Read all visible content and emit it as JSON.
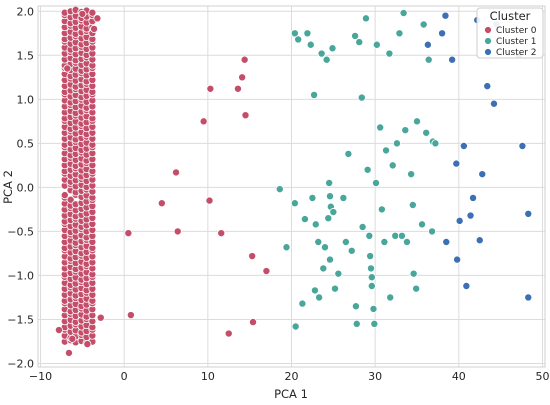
{
  "chart_data": {
    "type": "scatter",
    "xlabel": "PCA 1",
    "ylabel": "PCA 2",
    "xlim": [
      -10.3,
      50.3
    ],
    "ylim": [
      -2.04,
      2.06
    ],
    "xticks": [
      -10,
      0,
      10,
      20,
      30,
      40,
      50
    ],
    "yticks": [
      -2.0,
      -1.5,
      -1.0,
      -0.5,
      0.0,
      0.5,
      1.0,
      1.5,
      2.0
    ],
    "xtick_labels": [
      "−10",
      "0",
      "10",
      "20",
      "30",
      "40",
      "50"
    ],
    "ytick_labels": [
      "−2.0",
      "−1.5",
      "−1.0",
      "−0.5",
      "0.0",
      "0.5",
      "1.0",
      "1.5",
      "2.0"
    ],
    "grid": true,
    "legend": {
      "title": "Cluster",
      "position": "top-right"
    },
    "series": [
      {
        "name": "Cluster 0",
        "color": "#c44e6a",
        "band": {
          "columns": [
            -7.1,
            -6.4,
            -5.8,
            -5.1,
            -4.5,
            -3.8
          ],
          "y_from": -1.72,
          "y_to": 2.0,
          "y_step": 0.06
        },
        "points": [
          [
            -7.8,
            -1.62
          ],
          [
            -6.6,
            -1.88
          ],
          [
            -4.4,
            -1.78
          ],
          [
            -6.8,
            1.35
          ],
          [
            -3.2,
            1.92
          ],
          [
            -5.0,
            1.97
          ],
          [
            -2.8,
            -1.48
          ],
          [
            -6.2,
            -1.72
          ],
          [
            -3.6,
            1.8
          ],
          [
            0.5,
            -0.52
          ],
          [
            0.8,
            -1.45
          ],
          [
            4.5,
            -0.18
          ],
          [
            6.2,
            0.17
          ],
          [
            6.4,
            -0.5
          ],
          [
            9.5,
            0.75
          ],
          [
            10.2,
            -0.15
          ],
          [
            10.3,
            1.12
          ],
          [
            11.6,
            -0.52
          ],
          [
            12.5,
            -1.66
          ],
          [
            13.6,
            1.12
          ],
          [
            14.1,
            1.25
          ],
          [
            14.4,
            1.45
          ],
          [
            14.5,
            0.82
          ],
          [
            15.3,
            -0.78
          ],
          [
            15.4,
            -1.53
          ],
          [
            17.0,
            -0.95
          ]
        ]
      },
      {
        "name": "Cluster 1",
        "color": "#48a69a",
        "points": [
          [
            18.6,
            -0.02
          ],
          [
            19.4,
            -0.68
          ],
          [
            20.4,
            -0.18
          ],
          [
            20.5,
            -1.58
          ],
          [
            20.4,
            1.75
          ],
          [
            20.8,
            1.68
          ],
          [
            21.3,
            -1.32
          ],
          [
            21.6,
            -0.36
          ],
          [
            21.9,
            1.75
          ],
          [
            22.3,
            1.62
          ],
          [
            22.5,
            -0.12
          ],
          [
            22.9,
            -0.42
          ],
          [
            22.7,
            1.05
          ],
          [
            22.8,
            -1.17
          ],
          [
            23.2,
            -0.62
          ],
          [
            23.3,
            -1.25
          ],
          [
            23.6,
            1.52
          ],
          [
            23.8,
            -0.92
          ],
          [
            24.0,
            -0.68
          ],
          [
            24.2,
            1.45
          ],
          [
            24.4,
            -0.35
          ],
          [
            24.6,
            -0.1
          ],
          [
            24.5,
            0.05
          ],
          [
            24.6,
            -0.82
          ],
          [
            24.7,
            -0.22
          ],
          [
            24.9,
            1.58
          ],
          [
            25.0,
            -0.28
          ],
          [
            25.2,
            -1.15
          ],
          [
            25.6,
            -0.98
          ],
          [
            26.2,
            -0.12
          ],
          [
            26.5,
            -0.62
          ],
          [
            26.8,
            0.38
          ],
          [
            27.2,
            -0.72
          ],
          [
            27.6,
            1.72
          ],
          [
            27.7,
            -1.35
          ],
          [
            27.8,
            -1.55
          ],
          [
            28.1,
            1.65
          ],
          [
            28.4,
            1.02
          ],
          [
            28.5,
            -0.45
          ],
          [
            28.9,
            1.92
          ],
          [
            29.1,
            0.2
          ],
          [
            29.3,
            -0.55
          ],
          [
            29.4,
            -0.78
          ],
          [
            29.5,
            -0.92
          ],
          [
            29.6,
            -1.02
          ],
          [
            29.6,
            -1.12
          ],
          [
            29.8,
            -1.38
          ],
          [
            29.9,
            -1.55
          ],
          [
            30.1,
            0.05
          ],
          [
            30.2,
            1.62
          ],
          [
            30.6,
            0.68
          ],
          [
            30.8,
            -0.25
          ],
          [
            31.1,
            -0.62
          ],
          [
            31.3,
            0.42
          ],
          [
            31.7,
            1.52
          ],
          [
            31.8,
            -1.25
          ],
          [
            32.1,
            0.25
          ],
          [
            32.4,
            -0.55
          ],
          [
            32.6,
            0.5
          ],
          [
            32.9,
            1.75
          ],
          [
            33.2,
            -0.55
          ],
          [
            33.4,
            1.98
          ],
          [
            33.6,
            0.65
          ],
          [
            33.8,
            -0.62
          ],
          [
            34.3,
            0.15
          ],
          [
            34.5,
            -0.2
          ],
          [
            34.6,
            -0.98
          ],
          [
            34.9,
            -1.15
          ],
          [
            35.0,
            0.75
          ],
          [
            35.6,
            -0.42
          ],
          [
            35.8,
            1.85
          ],
          [
            36.1,
            0.62
          ],
          [
            36.4,
            1.45
          ],
          [
            36.8,
            -0.5
          ],
          [
            36.9,
            0.52
          ],
          [
            37.2,
            0.5
          ]
        ]
      },
      {
        "name": "Cluster 2",
        "color": "#3c6fb4",
        "points": [
          [
            36.3,
            1.62
          ],
          [
            38.0,
            1.75
          ],
          [
            38.4,
            1.95
          ],
          [
            38.5,
            -0.62
          ],
          [
            39.2,
            1.45
          ],
          [
            39.8,
            -0.82
          ],
          [
            39.7,
            0.27
          ],
          [
            40.1,
            -0.38
          ],
          [
            40.6,
            0.47
          ],
          [
            40.9,
            -1.12
          ],
          [
            41.4,
            -0.32
          ],
          [
            41.7,
            -0.12
          ],
          [
            42.2,
            1.9
          ],
          [
            42.5,
            -0.6
          ],
          [
            42.8,
            0.15
          ],
          [
            43.4,
            1.15
          ],
          [
            44.2,
            0.95
          ],
          [
            44.5,
            1.85
          ],
          [
            47.2,
            1.5
          ],
          [
            47.6,
            0.47
          ],
          [
            48.3,
            -0.3
          ],
          [
            48.3,
            -1.25
          ]
        ]
      }
    ]
  }
}
